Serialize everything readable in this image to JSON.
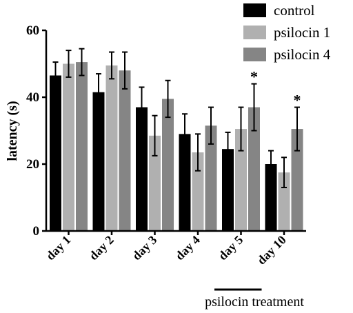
{
  "chart_data": {
    "type": "bar",
    "categories": [
      "day 1",
      "day 2",
      "day 3",
      "day 4",
      "day 5",
      "day 10"
    ],
    "series": [
      {
        "name": "control",
        "color": "#000000",
        "values": [
          46.5,
          41.5,
          37.0,
          29.0,
          24.5,
          20.0
        ],
        "errors": [
          4.0,
          5.5,
          6.0,
          6.0,
          5.0,
          4.0
        ]
      },
      {
        "name": "psilocin 1",
        "color": "#b0b0b0",
        "values": [
          50.0,
          49.5,
          28.5,
          23.5,
          30.5,
          17.5
        ],
        "errors": [
          4.0,
          4.0,
          6.0,
          5.5,
          6.5,
          4.5
        ]
      },
      {
        "name": "psilocin 4",
        "color": "#858585",
        "values": [
          50.5,
          48.0,
          39.5,
          31.5,
          37.0,
          30.5
        ],
        "errors": [
          4.0,
          5.5,
          5.5,
          5.5,
          7.0,
          6.5
        ]
      }
    ],
    "significance": [
      {
        "category": "day 5",
        "series": "psilocin 4",
        "mark": "*"
      },
      {
        "category": "day 10",
        "series": "psilocin 4",
        "mark": "*"
      }
    ],
    "ylabel": "latency (s)",
    "ylim": [
      0,
      60
    ],
    "yticks": [
      "0",
      "20",
      "40",
      "60"
    ],
    "grid": false,
    "legend_position": "top-right",
    "annotation": {
      "text": "psilocin treatment",
      "spans": [
        "day 5"
      ]
    }
  }
}
